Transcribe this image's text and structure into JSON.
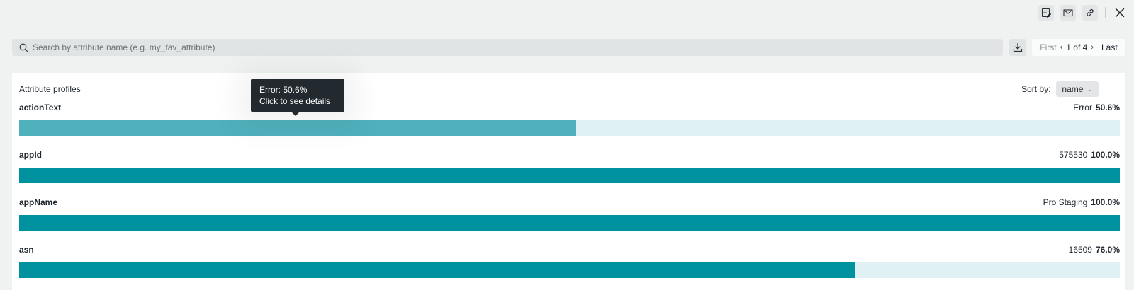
{
  "toolbar": {
    "icons": [
      "edit-report-icon",
      "mail-icon",
      "link-icon",
      "close-icon"
    ]
  },
  "search": {
    "placeholder": "Search by attribute name (e.g. my_fav_attribute)"
  },
  "pager": {
    "first": "First",
    "current": "1 of 4",
    "last": "Last"
  },
  "panel": {
    "title": "Attribute profiles",
    "sort_label": "Sort by:",
    "sort_value": "name"
  },
  "attributes": [
    {
      "name": "actionText",
      "value": "Error",
      "percent": "50.6%",
      "fraction": 0.506
    },
    {
      "name": "appId",
      "value": "575530",
      "percent": "100.0%",
      "fraction": 1.0
    },
    {
      "name": "appName",
      "value": "Pro Staging",
      "percent": "100.0%",
      "fraction": 1.0
    },
    {
      "name": "asn",
      "value": "16509",
      "percent": "76.0%",
      "fraction": 0.76
    }
  ],
  "tooltip": {
    "line1": "Error: 50.6%",
    "line2": "Click to see details"
  },
  "colors": {
    "bar_fill": "#00929e",
    "bar_fill_hover": "#4fb1bc",
    "bar_track": "#e0f1f3",
    "tooltip_bg": "#232a2f"
  }
}
